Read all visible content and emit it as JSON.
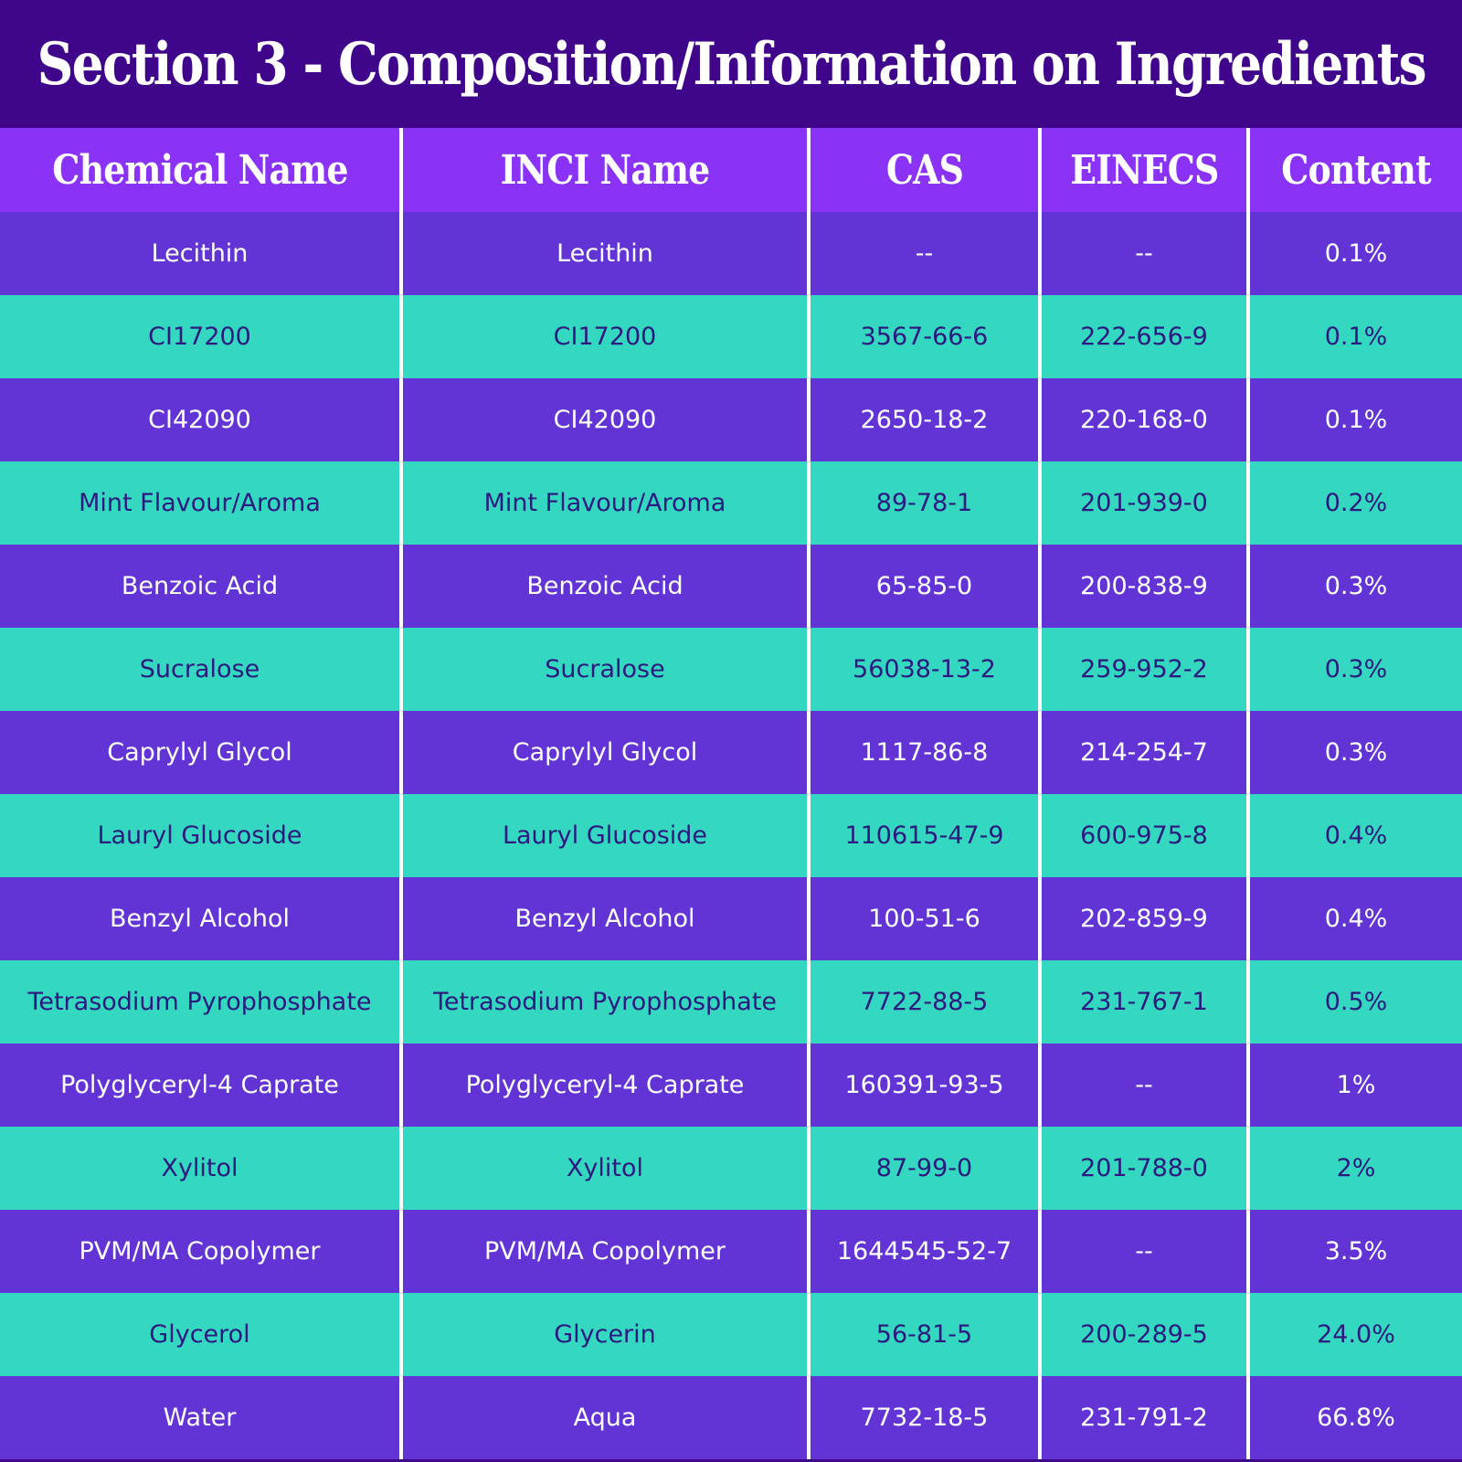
{
  "title": "Section 3 - Composition/Information on Ingredients",
  "colors": {
    "title_bg": "#3f068c",
    "header_bg": "#8a33f7",
    "row_purple": "#6234d6",
    "row_teal": "#34d7bf",
    "dark_text": "#2c1a80"
  },
  "table": {
    "headers": [
      "Chemical Name",
      "INCI Name",
      "CAS",
      "EINECS",
      "Content"
    ],
    "rows": [
      [
        "Lecithin",
        "Lecithin",
        "--",
        "--",
        "0.1%"
      ],
      [
        "CI17200",
        "CI17200",
        "3567-66-6",
        "222-656-9",
        "0.1%"
      ],
      [
        "CI42090",
        "CI42090",
        "2650-18-2",
        "220-168-0",
        "0.1%"
      ],
      [
        "Mint Flavour/Aroma",
        "Mint Flavour/Aroma",
        "89-78-1",
        "201-939-0",
        "0.2%"
      ],
      [
        "Benzoic Acid",
        "Benzoic Acid",
        "65-85-0",
        "200-838-9",
        "0.3%"
      ],
      [
        "Sucralose",
        "Sucralose",
        "56038-13-2",
        "259-952-2",
        "0.3%"
      ],
      [
        "Caprylyl Glycol",
        "Caprylyl Glycol",
        "1117-86-8",
        "214-254-7",
        "0.3%"
      ],
      [
        "Lauryl Glucoside",
        "Lauryl Glucoside",
        "110615-47-9",
        "600-975-8",
        "0.4%"
      ],
      [
        "Benzyl Alcohol",
        "Benzyl Alcohol",
        "100-51-6",
        "202-859-9",
        "0.4%"
      ],
      [
        "Tetrasodium Pyrophosphate",
        "Tetrasodium Pyrophosphate",
        "7722-88-5",
        "231-767-1",
        "0.5%"
      ],
      [
        "Polyglyceryl-4 Caprate",
        "Polyglyceryl-4 Caprate",
        "160391-93-5",
        "--",
        "1%"
      ],
      [
        "Xylitol",
        "Xylitol",
        "87-99-0",
        "201-788-0",
        "2%"
      ],
      [
        "PVM/MA Copolymer",
        "PVM/MA Copolymer",
        "1644545-52-7",
        "--",
        "3.5%"
      ],
      [
        "Glycerol",
        "Glycerin",
        "56-81-5",
        "200-289-5",
        "24.0%"
      ],
      [
        "Water",
        "Aqua",
        "7732-18-5",
        "231-791-2",
        "66.8%"
      ]
    ]
  }
}
